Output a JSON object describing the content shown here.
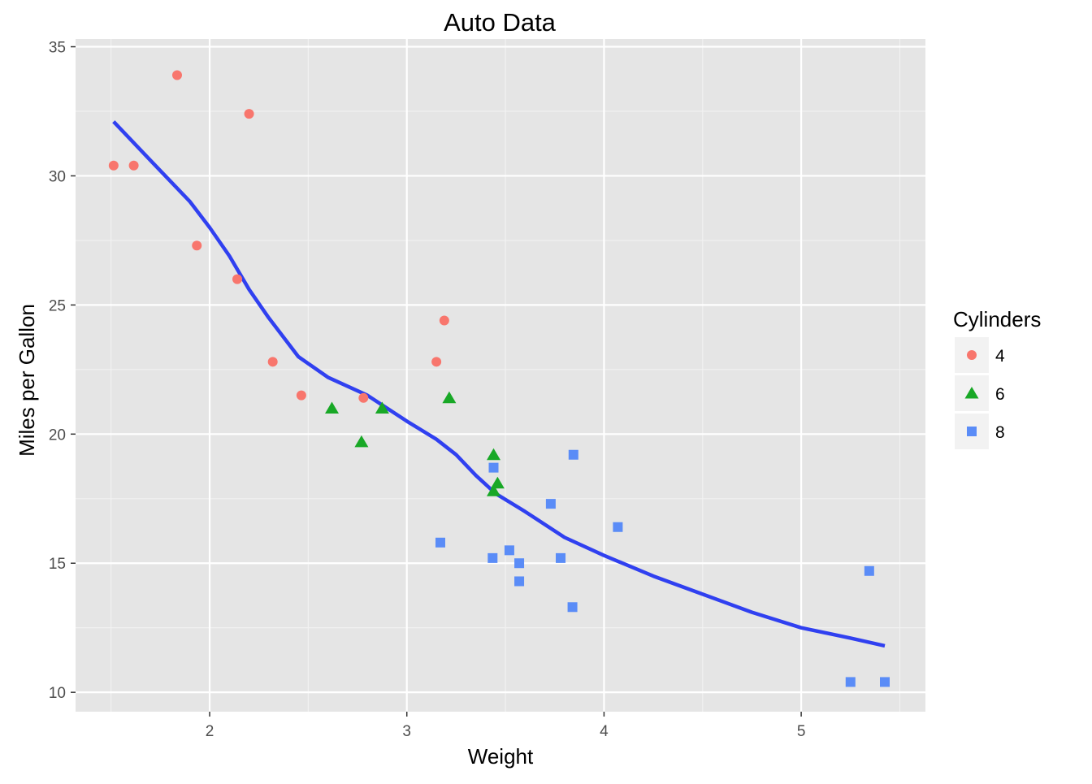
{
  "chart_data": {
    "type": "scatter",
    "title": "Auto Data",
    "xlabel": "Weight",
    "ylabel": "Miles per Gallon",
    "xlim": [
      1.32,
      5.63
    ],
    "ylim": [
      9.25,
      35.3
    ],
    "x_ticks": [
      2,
      3,
      4,
      5
    ],
    "y_ticks": [
      10,
      15,
      20,
      25,
      30,
      35
    ],
    "grid": true,
    "background": "#e5e5e5",
    "legend": {
      "title": "Cylinders",
      "position": "right",
      "entries": [
        {
          "label": "4",
          "color": "#f8766d",
          "shape": "circle"
        },
        {
          "label": "6",
          "color": "#18a826",
          "shape": "triangle"
        },
        {
          "label": "8",
          "color": "#5a8cf7",
          "shape": "square"
        }
      ]
    },
    "series": [
      {
        "name": "4",
        "color": "#f8766d",
        "shape": "circle",
        "points": [
          [
            1.513,
            30.4
          ],
          [
            1.615,
            30.4
          ],
          [
            1.835,
            33.9
          ],
          [
            1.935,
            27.3
          ],
          [
            2.14,
            26.0
          ],
          [
            2.2,
            32.4
          ],
          [
            2.32,
            22.8
          ],
          [
            2.465,
            21.5
          ],
          [
            2.78,
            21.4
          ],
          [
            3.15,
            22.8
          ],
          [
            3.19,
            24.4
          ]
        ]
      },
      {
        "name": "6",
        "color": "#18a826",
        "shape": "triangle",
        "points": [
          [
            2.62,
            21.0
          ],
          [
            2.77,
            19.7
          ],
          [
            2.875,
            21.0
          ],
          [
            3.215,
            21.4
          ],
          [
            3.44,
            19.2
          ],
          [
            3.44,
            17.8
          ],
          [
            3.46,
            18.1
          ]
        ]
      },
      {
        "name": "8",
        "color": "#5a8cf7",
        "shape": "square",
        "points": [
          [
            3.17,
            15.8
          ],
          [
            3.435,
            15.2
          ],
          [
            3.44,
            18.7
          ],
          [
            3.52,
            15.5
          ],
          [
            3.57,
            14.3
          ],
          [
            3.57,
            15.0
          ],
          [
            3.73,
            17.3
          ],
          [
            3.78,
            15.2
          ],
          [
            3.84,
            13.3
          ],
          [
            3.845,
            19.2
          ],
          [
            4.07,
            16.4
          ],
          [
            5.25,
            10.4
          ],
          [
            5.345,
            14.7
          ],
          [
            5.424,
            10.4
          ]
        ]
      }
    ],
    "trend": {
      "type": "loess",
      "color": "#3040f0",
      "points": [
        [
          1.513,
          32.1
        ],
        [
          1.7,
          30.6
        ],
        [
          1.9,
          29.0
        ],
        [
          2.0,
          28.0
        ],
        [
          2.1,
          26.9
        ],
        [
          2.2,
          25.6
        ],
        [
          2.3,
          24.5
        ],
        [
          2.45,
          23.0
        ],
        [
          2.6,
          22.2
        ],
        [
          2.8,
          21.5
        ],
        [
          3.0,
          20.5
        ],
        [
          3.15,
          19.8
        ],
        [
          3.25,
          19.2
        ],
        [
          3.35,
          18.4
        ],
        [
          3.45,
          17.7
        ],
        [
          3.6,
          17.0
        ],
        [
          3.8,
          16.0
        ],
        [
          4.0,
          15.3
        ],
        [
          4.25,
          14.5
        ],
        [
          4.5,
          13.8
        ],
        [
          4.75,
          13.1
        ],
        [
          5.0,
          12.5
        ],
        [
          5.25,
          12.1
        ],
        [
          5.424,
          11.8
        ]
      ]
    }
  }
}
